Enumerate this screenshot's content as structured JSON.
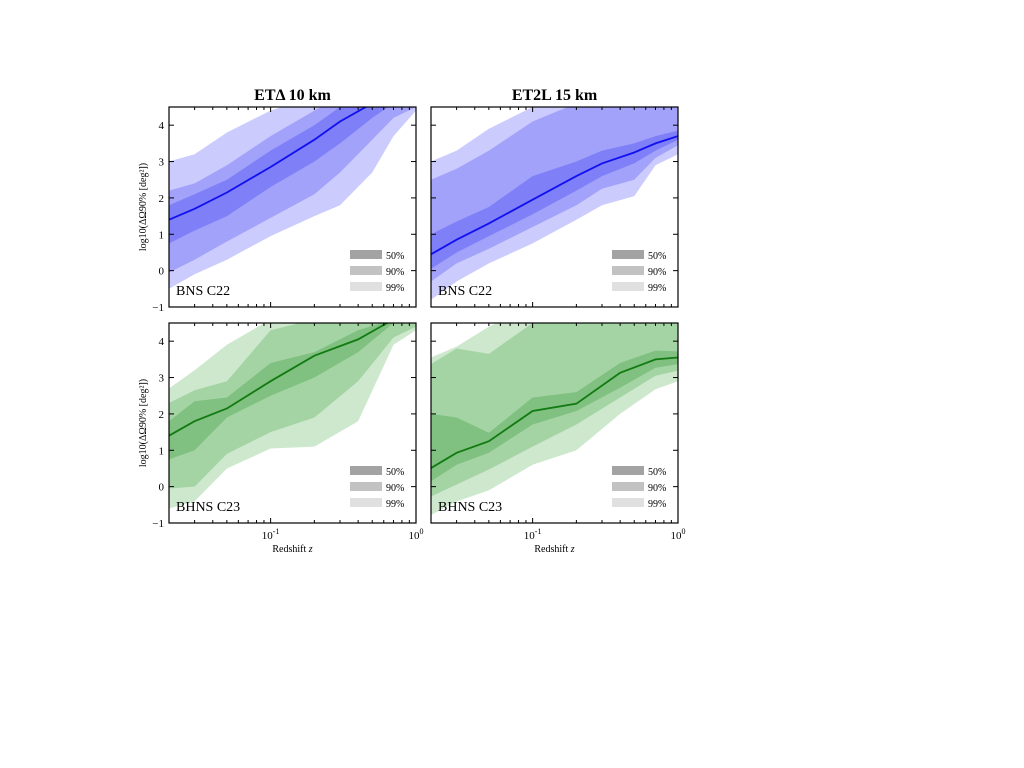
{
  "chart_data": {
    "type": "area",
    "layout": "2x2 grid, shared axes",
    "column_titles": [
      "ETΔ 10 km",
      "ET2L 15 km"
    ],
    "xlabel": "Redshift z",
    "ylabel": "log10(ΔΩ90% [deg²])",
    "x_scale": "log",
    "xlim": [
      0.02,
      1.0
    ],
    "ylim": [
      -1,
      4.5
    ],
    "x_tick_labels": [
      "10^-1",
      "10^0"
    ],
    "y_tick_labels": [
      "−1",
      "0",
      "1",
      "2",
      "3",
      "4"
    ],
    "y_ticks": [
      -1,
      0,
      1,
      2,
      3,
      4
    ],
    "x_ticks": [
      0.1,
      1.0
    ],
    "grid": false,
    "legend": {
      "placement": "bottom-right",
      "entries": [
        "50%",
        "90%",
        "99%"
      ],
      "colors": [
        "#a3a3a3",
        "#c2c2c2",
        "#e0e0e0"
      ]
    },
    "panels": [
      {
        "column": 0,
        "row": 0,
        "label": "BNS C22",
        "colors": {
          "line": "#1010f0",
          "band50": "#7f7ff7",
          "band90": "#a2a2fa",
          "band99": "#cbcbfd"
        },
        "z": [
          0.02,
          0.03,
          0.05,
          0.1,
          0.2,
          0.3,
          0.5,
          0.7,
          1.0
        ],
        "median": [
          1.4,
          1.7,
          2.15,
          2.85,
          3.6,
          4.1,
          4.6,
          5.0,
          5.0
        ],
        "band50": {
          "low": [
            0.75,
            1.1,
            1.5,
            2.3,
            3.0,
            3.5,
            4.2,
            4.6,
            5.0
          ],
          "high": [
            1.8,
            2.1,
            2.5,
            3.3,
            4.0,
            4.5,
            4.8,
            5.0,
            5.0
          ]
        },
        "band90": {
          "low": [
            -0.05,
            0.3,
            0.8,
            1.45,
            2.1,
            2.7,
            3.6,
            4.2,
            4.5
          ],
          "high": [
            2.2,
            2.4,
            2.9,
            3.7,
            4.4,
            4.8,
            5.0,
            5.0,
            5.0
          ]
        },
        "band99": {
          "low": [
            -0.5,
            -0.1,
            0.3,
            0.95,
            1.5,
            1.8,
            2.7,
            3.7,
            4.4
          ],
          "high": [
            3.0,
            3.2,
            3.8,
            4.4,
            4.8,
            5.0,
            5.0,
            5.0,
            5.0
          ]
        }
      },
      {
        "column": 1,
        "row": 0,
        "label": "BNS C22",
        "colors": {
          "line": "#1010f0",
          "band50": "#7f7ff7",
          "band90": "#a2a2fa",
          "band99": "#cbcbfd"
        },
        "z": [
          0.02,
          0.03,
          0.05,
          0.1,
          0.2,
          0.3,
          0.5,
          0.7,
          1.0
        ],
        "median": [
          0.45,
          0.85,
          1.3,
          1.95,
          2.6,
          2.95,
          3.25,
          3.5,
          3.7
        ],
        "band50": {
          "low": [
            0.05,
            0.5,
            0.95,
            1.55,
            2.2,
            2.6,
            2.95,
            3.3,
            3.6
          ],
          "high": [
            1.0,
            1.35,
            1.75,
            2.6,
            3.0,
            3.3,
            3.5,
            3.7,
            3.85
          ]
        },
        "band90": {
          "low": [
            -0.3,
            0.2,
            0.6,
            1.2,
            1.8,
            2.25,
            2.5,
            3.1,
            3.45
          ],
          "high": [
            2.5,
            2.8,
            3.3,
            4.1,
            4.6,
            5.0,
            5.0,
            5.0,
            5.0
          ]
        },
        "band99": {
          "low": [
            -0.8,
            -0.3,
            0.2,
            0.75,
            1.4,
            1.8,
            2.05,
            2.9,
            3.2
          ],
          "high": [
            3.0,
            3.3,
            3.9,
            4.5,
            5.0,
            5.0,
            5.0,
            5.0,
            5.0
          ]
        }
      },
      {
        "column": 0,
        "row": 1,
        "label": "BHNS C23",
        "colors": {
          "line": "#117a11",
          "band50": "#80c080",
          "band90": "#a4d4a4",
          "band99": "#cde8cd"
        },
        "z": [
          0.02,
          0.03,
          0.05,
          0.1,
          0.2,
          0.4,
          0.7,
          1.0
        ],
        "median": [
          1.4,
          1.8,
          2.15,
          2.9,
          3.6,
          4.05,
          4.6,
          5.0
        ],
        "band50": {
          "low": [
            0.75,
            1.0,
            1.9,
            2.5,
            3.0,
            3.7,
            4.5,
            4.6
          ],
          "high": [
            1.8,
            2.35,
            2.45,
            3.4,
            3.7,
            4.3,
            4.6,
            4.7
          ]
        },
        "band90": {
          "low": [
            -0.05,
            0.0,
            0.9,
            1.5,
            1.9,
            2.9,
            4.1,
            4.4
          ],
          "high": [
            2.3,
            2.65,
            2.9,
            4.3,
            4.6,
            4.6,
            4.6,
            4.6
          ]
        },
        "band99": {
          "low": [
            -0.6,
            -0.4,
            0.5,
            1.05,
            1.1,
            1.8,
            3.9,
            4.3
          ],
          "high": [
            2.7,
            3.2,
            3.9,
            4.6,
            5.0,
            5.0,
            5.0,
            5.0
          ]
        }
      },
      {
        "column": 1,
        "row": 1,
        "label": "BHNS C23",
        "colors": {
          "line": "#117a11",
          "band50": "#80c080",
          "band90": "#a4d4a4",
          "band99": "#cde8cd"
        },
        "z": [
          0.02,
          0.03,
          0.05,
          0.1,
          0.2,
          0.4,
          0.7,
          1.0
        ],
        "median": [
          0.51,
          0.93,
          1.25,
          2.08,
          2.28,
          3.13,
          3.5,
          3.55
        ],
        "band50": {
          "low": [
            0.15,
            0.6,
            0.93,
            1.71,
            2.08,
            2.72,
            3.27,
            3.37
          ],
          "high": [
            2.0,
            1.9,
            1.48,
            2.45,
            2.6,
            3.4,
            3.74,
            3.72
          ]
        },
        "band90": {
          "low": [
            -0.27,
            0.06,
            0.47,
            1.1,
            1.71,
            2.45,
            3.05,
            3.19
          ],
          "high": [
            3.37,
            3.8,
            3.65,
            4.5,
            5.0,
            5.0,
            5.0,
            5.0
          ]
        },
        "band99": {
          "low": [
            -0.78,
            -0.41,
            -0.1,
            0.6,
            1.0,
            2.0,
            2.68,
            2.9
          ],
          "high": [
            3.55,
            3.85,
            4.4,
            5.0,
            5.0,
            5.0,
            5.0,
            5.0
          ]
        }
      }
    ]
  }
}
